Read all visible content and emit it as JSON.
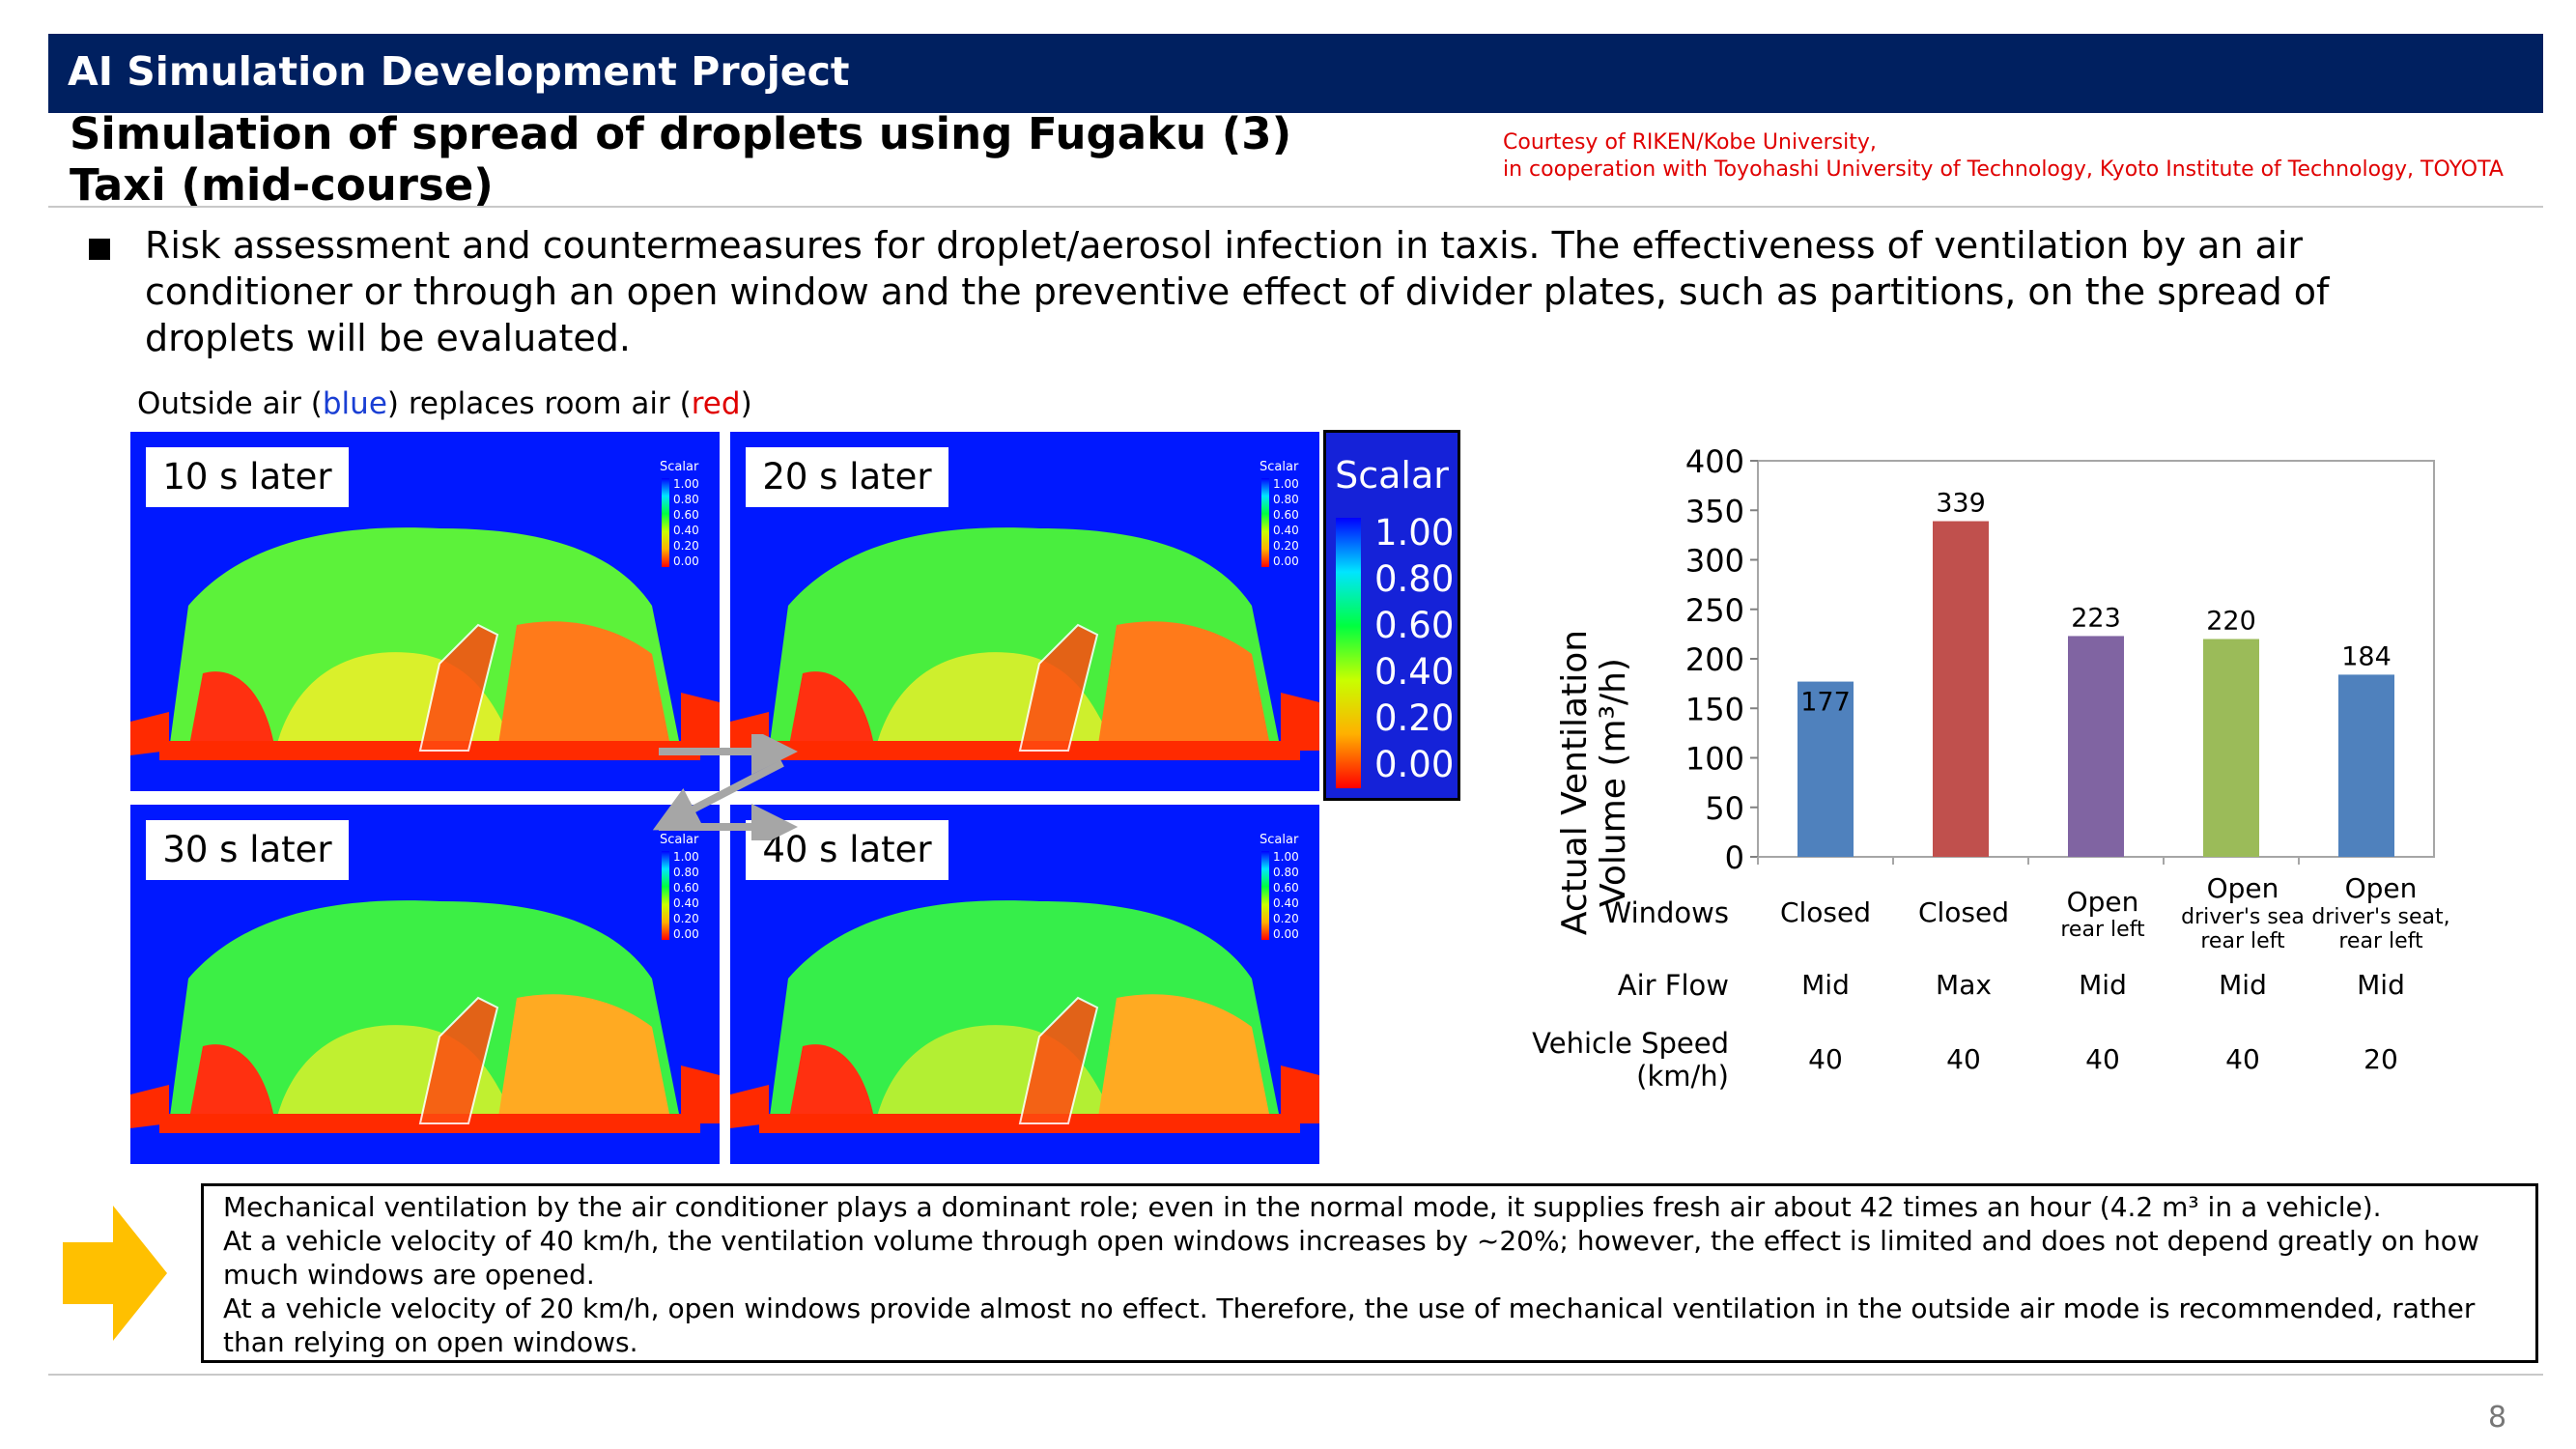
{
  "header": {
    "title": "AI Simulation Development Project",
    "subtitle_line1": "Simulation of spread of droplets using Fugaku (3)",
    "subtitle_line2": "Taxi (mid-course)"
  },
  "credit": {
    "line1": "Courtesy of RIKEN/Kobe University,",
    "line2": "in cooperation with Toyohashi University of Technology, Kyoto Institute of Technology, TOYOTA"
  },
  "bullet_text": "Risk assessment and countermeasures for droplet/aerosol infection in taxis. The effectiveness of ventilation by an air conditioner or through an open window and the preventive effect of divider plates, such as partitions, on the spread of droplets will be evaluated.",
  "air_note": {
    "prefix": "Outside air (",
    "blue": "blue",
    "middle": ") replaces room air (",
    "red": "red",
    "suffix": ")"
  },
  "simulation": {
    "panels": [
      {
        "label": "10 s later"
      },
      {
        "label": "20 s later"
      },
      {
        "label": "30 s later"
      },
      {
        "label": "40 s later"
      }
    ],
    "mini_scalar_title": "Scalar",
    "mini_scalar_values": [
      "1.00",
      "0.80",
      "0.60",
      "0.40",
      "0.20",
      "0.00"
    ]
  },
  "scalar_legend": {
    "title": "Scalar",
    "values": [
      "1.00",
      "0.80",
      "0.60",
      "0.40",
      "0.20",
      "0.00"
    ],
    "colors": [
      "#0000ff",
      "#00e5ff",
      "#00ff40",
      "#c8ff00",
      "#ffb000",
      "#ff0000"
    ]
  },
  "chart_data": {
    "type": "bar",
    "ylabel_line1": "Actual Ventilation",
    "ylabel_line2": "Volume (m³/h)",
    "ylim": [
      0,
      400
    ],
    "yticks": [
      0,
      50,
      100,
      150,
      200,
      250,
      300,
      350,
      400
    ],
    "values": [
      177,
      339,
      223,
      220,
      184
    ],
    "colors": [
      "#4f81bd",
      "#c0504d",
      "#8064a2",
      "#9bbb59",
      "#4f81bd"
    ],
    "grid": false
  },
  "table": {
    "row_headers": {
      "windows": "Windows",
      "airflow": "Air Flow",
      "speed_line1": "Vehicle Speed",
      "speed_line2": "(km/h)"
    },
    "columns": [
      {
        "windows": "Closed",
        "windows_sub": "",
        "windows_sub2": "",
        "airflow": "Mid",
        "speed": "40"
      },
      {
        "windows": "Closed",
        "windows_sub": "",
        "windows_sub2": "",
        "airflow": "Max",
        "speed": "40"
      },
      {
        "windows": "Open",
        "windows_sub": "rear left",
        "windows_sub2": "",
        "airflow": "Mid",
        "speed": "40"
      },
      {
        "windows": "Open",
        "windows_sub": "driver's sea",
        "windows_sub2": "rear left",
        "airflow": "Mid",
        "speed": "40"
      },
      {
        "windows": "Open",
        "windows_sub": "driver's seat,",
        "windows_sub2": "rear left",
        "airflow": "Mid",
        "speed": "20"
      }
    ]
  },
  "summary": {
    "line1": "Mechanical ventilation by the air conditioner plays a dominant role; even in the normal mode, it supplies fresh air about 42 times an hour (4.2 m³ in a vehicle).",
    "line2": "At a vehicle velocity of 40 km/h, the ventilation volume through open windows increases by ~20%; however, the effect is limited and does not depend greatly on how much windows are opened.",
    "line3": "At a vehicle velocity of 20 km/h, open windows provide almost no effect. Therefore, the use of mechanical ventilation in the outside air mode is recommended, rather than relying on open windows."
  },
  "page_number": "8"
}
